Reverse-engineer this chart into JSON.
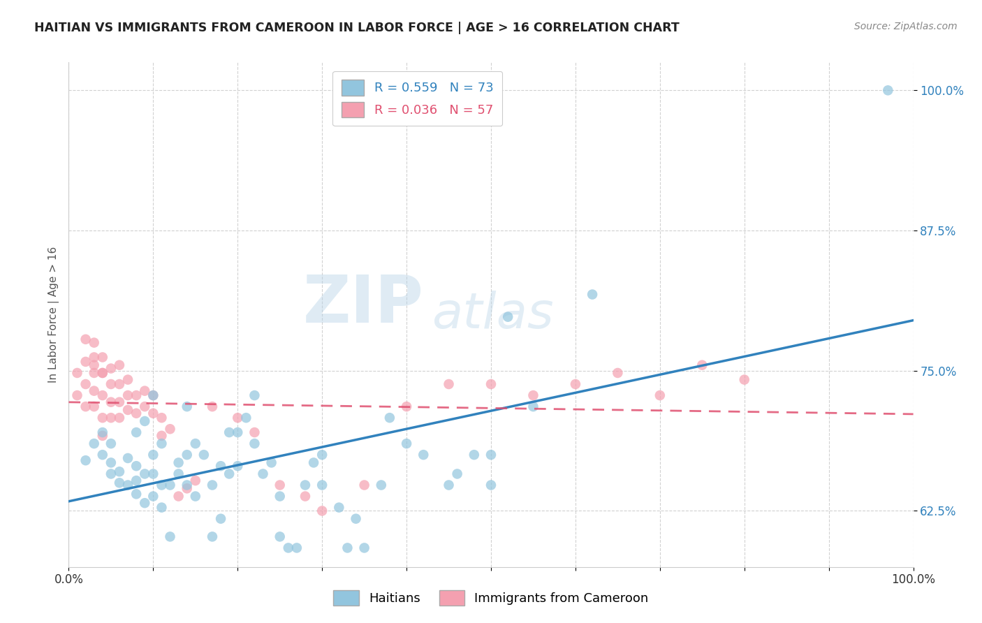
{
  "title": "HAITIAN VS IMMIGRANTS FROM CAMEROON IN LABOR FORCE | AGE > 16 CORRELATION CHART",
  "source": "Source: ZipAtlas.com",
  "ylabel": "In Labor Force | Age > 16",
  "xlim": [
    0.0,
    1.0
  ],
  "ylim": [
    0.575,
    1.025
  ],
  "yticks": [
    0.625,
    0.75,
    0.875,
    1.0
  ],
  "ytick_labels": [
    "62.5%",
    "75.0%",
    "87.5%",
    "100.0%"
  ],
  "xticks": [
    0.0,
    0.1,
    0.2,
    0.3,
    0.4,
    0.5,
    0.6,
    0.7,
    0.8,
    0.9,
    1.0
  ],
  "xtick_labels": [
    "0.0%",
    "",
    "",
    "",
    "",
    "",
    "",
    "",
    "",
    "",
    "100.0%"
  ],
  "watermark_line1": "ZIP",
  "watermark_line2": "atlas",
  "series1_name": "Haitians",
  "series1_R": "0.559",
  "series1_N": "73",
  "series1_color": "#92c5de",
  "series1_line_color": "#3182bd",
  "series2_name": "Immigrants from Cameroon",
  "series2_R": "0.036",
  "series2_N": "57",
  "series2_color": "#f4a0b0",
  "series2_line_color": "#e05070",
  "background_color": "#ffffff",
  "grid_color": "#cccccc",
  "haitians_x": [
    0.02,
    0.03,
    0.04,
    0.04,
    0.05,
    0.05,
    0.05,
    0.06,
    0.06,
    0.07,
    0.07,
    0.08,
    0.08,
    0.08,
    0.08,
    0.09,
    0.09,
    0.09,
    0.1,
    0.1,
    0.1,
    0.1,
    0.11,
    0.11,
    0.11,
    0.12,
    0.12,
    0.13,
    0.13,
    0.14,
    0.14,
    0.14,
    0.15,
    0.15,
    0.16,
    0.17,
    0.17,
    0.18,
    0.18,
    0.19,
    0.19,
    0.2,
    0.2,
    0.21,
    0.22,
    0.22,
    0.23,
    0.24,
    0.25,
    0.25,
    0.26,
    0.27,
    0.28,
    0.29,
    0.3,
    0.3,
    0.32,
    0.33,
    0.34,
    0.35,
    0.37,
    0.38,
    0.4,
    0.42,
    0.45,
    0.46,
    0.48,
    0.5,
    0.5,
    0.52,
    0.55,
    0.62,
    0.97
  ],
  "haitians_y": [
    0.67,
    0.685,
    0.675,
    0.695,
    0.658,
    0.668,
    0.685,
    0.65,
    0.66,
    0.648,
    0.672,
    0.64,
    0.652,
    0.665,
    0.695,
    0.632,
    0.658,
    0.705,
    0.638,
    0.658,
    0.675,
    0.728,
    0.628,
    0.648,
    0.685,
    0.602,
    0.648,
    0.658,
    0.668,
    0.648,
    0.675,
    0.718,
    0.638,
    0.685,
    0.675,
    0.602,
    0.648,
    0.618,
    0.665,
    0.658,
    0.695,
    0.665,
    0.695,
    0.708,
    0.685,
    0.728,
    0.658,
    0.668,
    0.602,
    0.638,
    0.592,
    0.592,
    0.648,
    0.668,
    0.648,
    0.675,
    0.628,
    0.592,
    0.618,
    0.592,
    0.648,
    0.708,
    0.685,
    0.675,
    0.648,
    0.658,
    0.675,
    0.648,
    0.675,
    0.798,
    0.718,
    0.818,
    1.0
  ],
  "cameroon_x": [
    0.01,
    0.01,
    0.02,
    0.02,
    0.02,
    0.02,
    0.03,
    0.03,
    0.03,
    0.03,
    0.03,
    0.03,
    0.04,
    0.04,
    0.04,
    0.04,
    0.04,
    0.04,
    0.05,
    0.05,
    0.05,
    0.05,
    0.06,
    0.06,
    0.06,
    0.06,
    0.07,
    0.07,
    0.07,
    0.08,
    0.08,
    0.09,
    0.09,
    0.1,
    0.1,
    0.11,
    0.11,
    0.12,
    0.13,
    0.14,
    0.15,
    0.17,
    0.2,
    0.22,
    0.25,
    0.28,
    0.3,
    0.35,
    0.4,
    0.45,
    0.5,
    0.55,
    0.6,
    0.65,
    0.7,
    0.75,
    0.8
  ],
  "cameroon_y": [
    0.728,
    0.748,
    0.718,
    0.738,
    0.758,
    0.778,
    0.718,
    0.732,
    0.748,
    0.762,
    0.775,
    0.755,
    0.692,
    0.708,
    0.728,
    0.748,
    0.762,
    0.748,
    0.708,
    0.722,
    0.738,
    0.752,
    0.708,
    0.722,
    0.738,
    0.755,
    0.715,
    0.728,
    0.742,
    0.712,
    0.728,
    0.718,
    0.732,
    0.712,
    0.728,
    0.692,
    0.708,
    0.698,
    0.638,
    0.645,
    0.652,
    0.718,
    0.708,
    0.695,
    0.648,
    0.638,
    0.625,
    0.648,
    0.718,
    0.738,
    0.738,
    0.728,
    0.738,
    0.748,
    0.728,
    0.755,
    0.742
  ]
}
